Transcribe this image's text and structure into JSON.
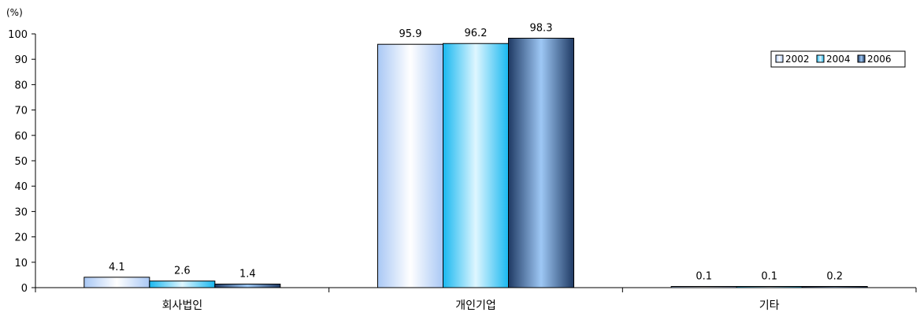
{
  "chart_data": {
    "type": "bar",
    "unit_label": "(%)",
    "categories": [
      "회사법인",
      "개인기업",
      "기타"
    ],
    "series": [
      {
        "name": "2002",
        "values": [
          4.1,
          95.9,
          0.1
        ],
        "labels": [
          "4.1",
          "95.9",
          "0.1"
        ]
      },
      {
        "name": "2004",
        "values": [
          2.6,
          96.2,
          0.1
        ],
        "labels": [
          "2.6",
          "96.2",
          "0.1"
        ]
      },
      {
        "name": "2006",
        "values": [
          1.4,
          98.3,
          0.2
        ],
        "labels": [
          "1.4",
          "98.3",
          "0.2"
        ]
      }
    ],
    "ylim": [
      0,
      100
    ],
    "yticks": [
      "0",
      "10",
      "20",
      "30",
      "40",
      "50",
      "60",
      "70",
      "80",
      "90",
      "100"
    ],
    "grid": false,
    "legend_position": "top-right",
    "colors": {
      "2002": [
        "#a9c8f5",
        "#ffffff",
        "#a9c8f5"
      ],
      "2004": [
        "#19b8f0",
        "#dff6ff",
        "#19b8f0"
      ],
      "2006": [
        "#1f3a64",
        "#9ec8f5",
        "#1f3a64"
      ]
    }
  }
}
